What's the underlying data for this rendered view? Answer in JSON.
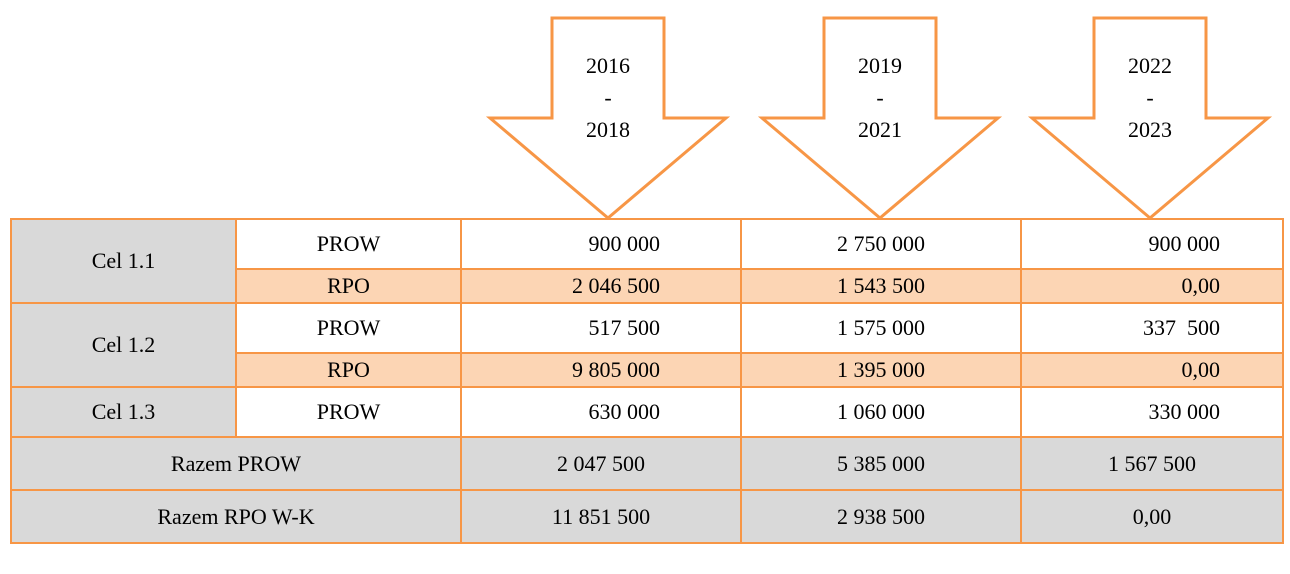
{
  "header": {
    "periods": [
      [
        "2016",
        "-",
        "2018"
      ],
      [
        "2019",
        "-",
        "2021"
      ],
      [
        "2022",
        "-",
        "2023"
      ]
    ]
  },
  "table": {
    "rows": [
      {
        "group": "Cel 1.1",
        "type": "PROW",
        "values": [
          "900 000",
          "2 750 000",
          "900 000"
        ]
      },
      {
        "type": "RPO",
        "values": [
          "2 046 500",
          "1 543 500",
          "0,00"
        ]
      },
      {
        "group": "Cel 1.2",
        "type": "PROW",
        "values": [
          "517 500",
          "1 575 000",
          "337  500"
        ]
      },
      {
        "type": "RPO",
        "values": [
          "9 805 000",
          "1 395 000",
          "0,00"
        ]
      },
      {
        "group": "Cel 1.3",
        "type": "PROW",
        "values": [
          "630 000",
          "1 060 000",
          "330 000"
        ]
      }
    ],
    "totals": [
      {
        "label": "Razem PROW",
        "values": [
          "2 047 500",
          "5 385 000",
          "1 567 500"
        ]
      },
      {
        "label": "Razem RPO W-K",
        "values": [
          "11 851 500",
          "2 938 500",
          "0,00"
        ]
      }
    ]
  }
}
